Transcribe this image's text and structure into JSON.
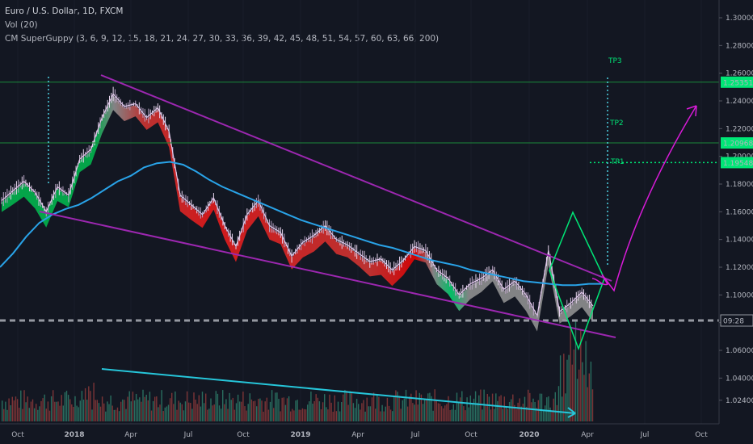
{
  "header": {
    "symbol": "Euro / U.S. Dollar, 1D, FXCM",
    "volume": "Vol (20)",
    "indicator": "CM SuperGuppy (3, 6, 9, 12, 15, 18, 21, 24, 27, 30, 33, 36, 39, 42, 45, 48, 51, 54, 57, 60, 63, 66, 200)"
  },
  "chart_data": {
    "type": "line",
    "title": "Euro / U.S. Dollar, 1D, FXCM",
    "y_axis": {
      "ticks": [
        "1.30000",
        "1.28000",
        "1.26000",
        "1.24000",
        "1.22000",
        "1.20000",
        "1.18000",
        "1.16000",
        "1.14000",
        "1.12000",
        "1.10000",
        "1.08000",
        "1.06000",
        "1.04000",
        "1.02400"
      ]
    },
    "x_axis": {
      "ticks": [
        "Oct",
        "2018",
        "Apr",
        "Jul",
        "Oct",
        "2019",
        "Apr",
        "Jul",
        "Oct",
        "2020",
        "Apr",
        "Jul",
        "Oct"
      ]
    },
    "price_labels": [
      {
        "text": "1.25351",
        "kind": "level",
        "color": "#00e676"
      },
      {
        "text": "1.20968",
        "kind": "level",
        "color": "#00e676"
      },
      {
        "text": "1.19548",
        "kind": "level",
        "color": "#00e676"
      },
      {
        "text": "09:28",
        "kind": "countdown",
        "color": "#131722"
      }
    ],
    "targets": [
      {
        "label": "TP3",
        "level": 1.25351
      },
      {
        "label": "TP2",
        "level": 1.20968
      },
      {
        "label": "TP1",
        "level": 1.19548
      }
    ],
    "series": [
      {
        "kind": "price",
        "values": [
          1.168,
          1.175,
          1.182,
          1.174,
          1.16,
          1.178,
          1.172,
          1.198,
          1.205,
          1.228,
          1.245,
          1.236,
          1.238,
          1.228,
          1.235,
          1.218,
          1.172,
          1.165,
          1.158,
          1.17,
          1.15,
          1.135,
          1.158,
          1.168,
          1.15,
          1.145,
          1.128,
          1.138,
          1.143,
          1.15,
          1.14,
          1.136,
          1.13,
          1.124,
          1.126,
          1.118,
          1.125,
          1.135,
          1.132,
          1.118,
          1.112,
          1.1,
          1.108,
          1.112,
          1.118,
          1.104,
          1.11,
          1.1,
          1.085,
          1.132,
          1.088,
          1.094,
          1.102,
          1.092
        ]
      },
      {
        "kind": "ema200",
        "values": [
          1.12,
          1.13,
          1.142,
          1.152,
          1.158,
          1.162,
          1.165,
          1.17,
          1.176,
          1.182,
          1.186,
          1.192,
          1.195,
          1.196,
          1.194,
          1.189,
          1.183,
          1.178,
          1.174,
          1.17,
          1.166,
          1.162,
          1.158,
          1.154,
          1.151,
          1.148,
          1.145,
          1.142,
          1.139,
          1.136,
          1.134,
          1.131,
          1.128,
          1.125,
          1.123,
          1.121,
          1.118,
          1.116,
          1.114,
          1.112,
          1.11,
          1.109,
          1.108,
          1.107,
          1.107,
          1.108,
          1.108
        ]
      }
    ]
  }
}
